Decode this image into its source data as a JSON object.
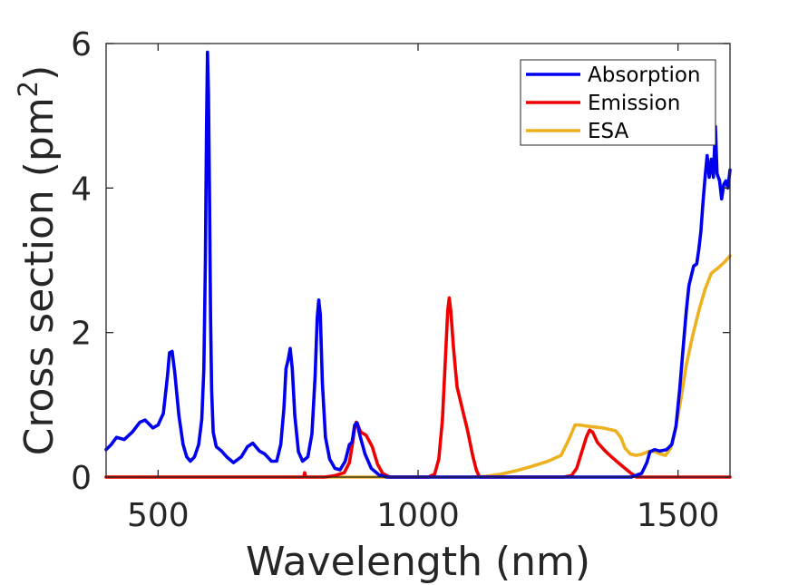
{
  "chart_data": {
    "type": "line",
    "title": "",
    "xlabel": "Wavelength (nm)",
    "ylabel_main": "Cross section (pm",
    "ylabel_sup": "2",
    "ylabel_close": ")",
    "xlim": [
      400,
      1600
    ],
    "ylim": [
      0,
      6
    ],
    "xticks": [
      500,
      1000,
      1500
    ],
    "yticks": [
      0,
      2,
      4,
      6
    ],
    "xtick_labels": [
      "500",
      "1000",
      "1500"
    ],
    "ytick_labels": [
      "0",
      "2",
      "4",
      "6"
    ],
    "grid": false,
    "legend_position": "top-right",
    "series": [
      {
        "name": "Absorption",
        "color": "#0000ee",
        "points": [
          [
            400,
            0.38
          ],
          [
            410,
            0.45
          ],
          [
            420,
            0.55
          ],
          [
            435,
            0.52
          ],
          [
            450,
            0.62
          ],
          [
            465,
            0.76
          ],
          [
            475,
            0.79
          ],
          [
            490,
            0.68
          ],
          [
            500,
            0.72
          ],
          [
            510,
            0.88
          ],
          [
            518,
            1.4
          ],
          [
            522,
            1.72
          ],
          [
            527,
            1.74
          ],
          [
            532,
            1.45
          ],
          [
            540,
            0.85
          ],
          [
            548,
            0.45
          ],
          [
            555,
            0.28
          ],
          [
            562,
            0.22
          ],
          [
            570,
            0.28
          ],
          [
            578,
            0.45
          ],
          [
            584,
            0.8
          ],
          [
            588,
            1.5
          ],
          [
            591,
            3.0
          ],
          [
            593,
            4.8
          ],
          [
            595,
            5.88
          ],
          [
            597,
            5.3
          ],
          [
            599,
            3.8
          ],
          [
            601,
            2.2
          ],
          [
            603,
            1.2
          ],
          [
            606,
            0.62
          ],
          [
            612,
            0.42
          ],
          [
            622,
            0.36
          ],
          [
            632,
            0.28
          ],
          [
            645,
            0.2
          ],
          [
            660,
            0.28
          ],
          [
            672,
            0.42
          ],
          [
            682,
            0.47
          ],
          [
            695,
            0.36
          ],
          [
            705,
            0.32
          ],
          [
            718,
            0.22
          ],
          [
            728,
            0.22
          ],
          [
            736,
            0.45
          ],
          [
            742,
            0.95
          ],
          [
            746,
            1.5
          ],
          [
            750,
            1.62
          ],
          [
            754,
            1.78
          ],
          [
            758,
            1.5
          ],
          [
            763,
            0.85
          ],
          [
            770,
            0.35
          ],
          [
            778,
            0.22
          ],
          [
            788,
            0.28
          ],
          [
            796,
            0.6
          ],
          [
            802,
            1.4
          ],
          [
            806,
            2.2
          ],
          [
            809,
            2.45
          ],
          [
            812,
            2.25
          ],
          [
            816,
            1.3
          ],
          [
            822,
            0.55
          ],
          [
            830,
            0.25
          ],
          [
            840,
            0.12
          ],
          [
            850,
            0.1
          ],
          [
            860,
            0.22
          ],
          [
            868,
            0.45
          ],
          [
            873,
            0.48
          ],
          [
            878,
            0.72
          ],
          [
            883,
            0.75
          ],
          [
            888,
            0.58
          ],
          [
            898,
            0.32
          ],
          [
            910,
            0.12
          ],
          [
            925,
            0.03
          ],
          [
            940,
            0.0
          ],
          [
            1000,
            0.0
          ],
          [
            1300,
            0.0
          ],
          [
            1410,
            0.0
          ],
          [
            1430,
            0.05
          ],
          [
            1440,
            0.2
          ],
          [
            1446,
            0.35
          ],
          [
            1455,
            0.38
          ],
          [
            1465,
            0.36
          ],
          [
            1478,
            0.38
          ],
          [
            1488,
            0.45
          ],
          [
            1496,
            0.7
          ],
          [
            1503,
            1.2
          ],
          [
            1510,
            1.8
          ],
          [
            1516,
            2.3
          ],
          [
            1521,
            2.65
          ],
          [
            1526,
            2.8
          ],
          [
            1530,
            2.92
          ],
          [
            1536,
            2.95
          ],
          [
            1540,
            3.15
          ],
          [
            1544,
            3.4
          ],
          [
            1548,
            3.8
          ],
          [
            1552,
            4.15
          ],
          [
            1556,
            4.45
          ],
          [
            1560,
            4.15
          ],
          [
            1564,
            4.4
          ],
          [
            1568,
            4.15
          ],
          [
            1572,
            4.85
          ],
          [
            1575,
            4.2
          ],
          [
            1580,
            4.1
          ],
          [
            1584,
            3.85
          ],
          [
            1588,
            4.05
          ],
          [
            1592,
            4.1
          ],
          [
            1596,
            4.0
          ],
          [
            1600,
            4.25
          ]
        ]
      },
      {
        "name": "Emission",
        "color": "#ee0000",
        "points": [
          [
            400,
            0.0
          ],
          [
            770,
            0.0
          ],
          [
            780,
            0.0
          ],
          [
            782,
            0.06
          ],
          [
            784,
            0.0
          ],
          [
            820,
            0.0
          ],
          [
            840,
            0.02
          ],
          [
            858,
            0.06
          ],
          [
            868,
            0.2
          ],
          [
            873,
            0.42
          ],
          [
            878,
            0.68
          ],
          [
            881,
            0.76
          ],
          [
            884,
            0.72
          ],
          [
            890,
            0.62
          ],
          [
            900,
            0.58
          ],
          [
            912,
            0.42
          ],
          [
            922,
            0.18
          ],
          [
            932,
            0.05
          ],
          [
            945,
            0.0
          ],
          [
            1020,
            0.0
          ],
          [
            1032,
            0.04
          ],
          [
            1040,
            0.25
          ],
          [
            1047,
            0.8
          ],
          [
            1053,
            1.7
          ],
          [
            1057,
            2.3
          ],
          [
            1060,
            2.48
          ],
          [
            1063,
            2.3
          ],
          [
            1068,
            1.8
          ],
          [
            1075,
            1.25
          ],
          [
            1085,
            0.95
          ],
          [
            1095,
            0.65
          ],
          [
            1105,
            0.3
          ],
          [
            1112,
            0.1
          ],
          [
            1118,
            0.0
          ],
          [
            1280,
            0.0
          ],
          [
            1295,
            0.02
          ],
          [
            1305,
            0.12
          ],
          [
            1315,
            0.35
          ],
          [
            1324,
            0.56
          ],
          [
            1330,
            0.65
          ],
          [
            1336,
            0.62
          ],
          [
            1345,
            0.48
          ],
          [
            1360,
            0.36
          ],
          [
            1372,
            0.28
          ],
          [
            1385,
            0.2
          ],
          [
            1398,
            0.12
          ],
          [
            1410,
            0.05
          ],
          [
            1420,
            0.0
          ],
          [
            1600,
            0.0
          ]
        ]
      },
      {
        "name": "ESA",
        "color": "#edb120",
        "points": [
          [
            400,
            0.0
          ],
          [
            1100,
            0.0
          ],
          [
            1130,
            0.01
          ],
          [
            1160,
            0.04
          ],
          [
            1190,
            0.09
          ],
          [
            1220,
            0.15
          ],
          [
            1250,
            0.22
          ],
          [
            1275,
            0.3
          ],
          [
            1290,
            0.52
          ],
          [
            1302,
            0.72
          ],
          [
            1310,
            0.72
          ],
          [
            1330,
            0.7
          ],
          [
            1355,
            0.68
          ],
          [
            1380,
            0.64
          ],
          [
            1390,
            0.55
          ],
          [
            1398,
            0.4
          ],
          [
            1408,
            0.32
          ],
          [
            1420,
            0.3
          ],
          [
            1432,
            0.32
          ],
          [
            1445,
            0.36
          ],
          [
            1456,
            0.35
          ],
          [
            1466,
            0.32
          ],
          [
            1476,
            0.3
          ],
          [
            1486,
            0.4
          ],
          [
            1496,
            0.7
          ],
          [
            1506,
            1.1
          ],
          [
            1516,
            1.55
          ],
          [
            1528,
            1.95
          ],
          [
            1540,
            2.3
          ],
          [
            1552,
            2.6
          ],
          [
            1564,
            2.82
          ],
          [
            1578,
            2.9
          ],
          [
            1590,
            2.98
          ],
          [
            1600,
            3.06
          ]
        ]
      }
    ]
  }
}
